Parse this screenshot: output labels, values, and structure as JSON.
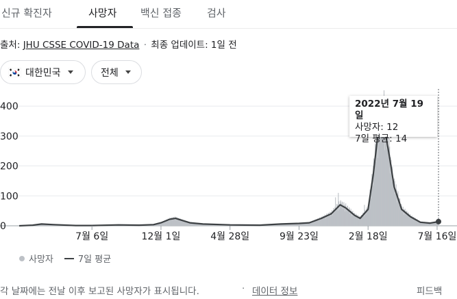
{
  "tabs": [
    {
      "label": "신규 확진자",
      "active": false
    },
    {
      "label": "사망자",
      "active": true
    },
    {
      "label": "백신 접종",
      "active": false
    },
    {
      "label": "검사",
      "active": false
    }
  ],
  "source": {
    "prefix": "출처:",
    "link": "JHU CSSE COVID-19 Data",
    "separator": "·",
    "updated": "최종 업데이트: 1일 전"
  },
  "filters": {
    "country": {
      "label": "대한민국",
      "flag": "south-korea-flag-icon"
    },
    "range": {
      "label": "전체"
    }
  },
  "tooltip": {
    "date": "2022년 7월 19일",
    "deaths": "사망자: 12",
    "avg": "7일 평균: 14"
  },
  "legend": {
    "deaths": "사망자",
    "avg": "7일 평균"
  },
  "footer": {
    "note": "각 날짜에는 전날 이후 보고된 사망자가 표시됩니다.",
    "separator": "·",
    "info_link": "데이터 정보",
    "feedback": "피드백"
  },
  "colors": {
    "bars": "#bdc1c6",
    "line": "#3c4043",
    "grid": "#e8eaed"
  },
  "chart_data": {
    "type": "bar",
    "title": "",
    "xlabel": "",
    "ylabel": "",
    "ylim": [
      0,
      430
    ],
    "yticks": [
      0,
      100,
      200,
      300,
      400
    ],
    "ytick_labels": [
      "0",
      "100",
      "200",
      "300",
      "400"
    ],
    "x_ticks": [
      {
        "label": "7월 6일",
        "date": "2020-07-06"
      },
      {
        "label": "12월 1일",
        "date": "2020-12-01"
      },
      {
        "label": "4월 28일",
        "date": "2021-04-28"
      },
      {
        "label": "9월 23일",
        "date": "2021-09-23"
      },
      {
        "label": "2월 18일",
        "date": "2022-02-18"
      },
      {
        "label": "7월 16일",
        "date": "2022-07-16"
      }
    ],
    "x_start": "2020-02-01",
    "x_end": "2022-07-19",
    "highlight": {
      "date": "2022-07-19",
      "deaths": 12,
      "avg": 14
    },
    "series": [
      {
        "name": "7일 평균",
        "type": "line",
        "points": [
          [
            "2020-02-01",
            0
          ],
          [
            "2020-03-01",
            2
          ],
          [
            "2020-03-20",
            6
          ],
          [
            "2020-04-15",
            4
          ],
          [
            "2020-06-01",
            1
          ],
          [
            "2020-07-06",
            1
          ],
          [
            "2020-09-01",
            3
          ],
          [
            "2020-10-15",
            2
          ],
          [
            "2020-11-15",
            4
          ],
          [
            "2020-12-01",
            10
          ],
          [
            "2020-12-20",
            22
          ],
          [
            "2021-01-01",
            25
          ],
          [
            "2021-01-15",
            18
          ],
          [
            "2021-02-01",
            10
          ],
          [
            "2021-03-01",
            6
          ],
          [
            "2021-04-28",
            3
          ],
          [
            "2021-07-01",
            2
          ],
          [
            "2021-08-15",
            6
          ],
          [
            "2021-09-23",
            8
          ],
          [
            "2021-10-15",
            10
          ],
          [
            "2021-11-10",
            25
          ],
          [
            "2021-12-01",
            40
          ],
          [
            "2021-12-20",
            70
          ],
          [
            "2022-01-01",
            60
          ],
          [
            "2022-01-20",
            35
          ],
          [
            "2022-02-01",
            25
          ],
          [
            "2022-02-18",
            55
          ],
          [
            "2022-03-01",
            170
          ],
          [
            "2022-03-10",
            290
          ],
          [
            "2022-03-18",
            360
          ],
          [
            "2022-03-25",
            330
          ],
          [
            "2022-04-05",
            230
          ],
          [
            "2022-04-15",
            130
          ],
          [
            "2022-05-01",
            55
          ],
          [
            "2022-05-20",
            30
          ],
          [
            "2022-06-10",
            12
          ],
          [
            "2022-07-01",
            9
          ],
          [
            "2022-07-19",
            14
          ]
        ]
      },
      {
        "name": "사망자",
        "type": "bar",
        "spikes": [
          [
            "2021-12-10",
            95
          ],
          [
            "2021-12-16",
            110
          ],
          [
            "2021-12-22",
            75
          ],
          [
            "2022-02-10",
            70
          ],
          [
            "2022-03-15",
            355
          ],
          [
            "2022-03-22",
            400
          ],
          [
            "2022-03-24",
            470
          ],
          [
            "2022-04-02",
            250
          ],
          [
            "2022-04-08",
            220
          ],
          [
            "2022-04-12",
            150
          ]
        ]
      }
    ]
  }
}
